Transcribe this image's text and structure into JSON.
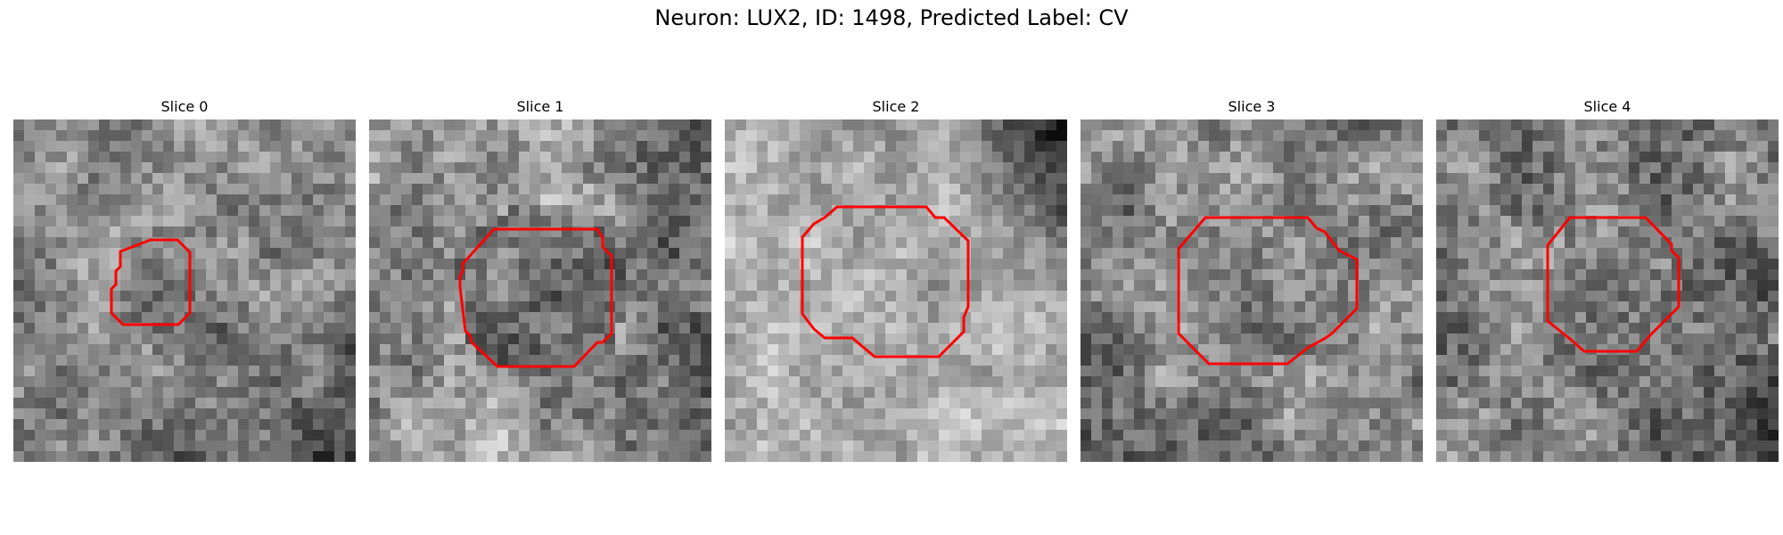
{
  "figure": {
    "title": "Neuron: LUX2, ID: 1498, Predicted Label: CV"
  },
  "colors": {
    "roi_outline": "#ff0000",
    "background": "#ffffff"
  },
  "grid_size": 32,
  "slices": [
    {
      "title": "Slice 0",
      "seed": 11,
      "base": 145,
      "contrast": 65,
      "center_tone": -25,
      "gradient": "dark-bottom-right",
      "roi_size": "small"
    },
    {
      "title": "Slice 1",
      "seed": 23,
      "base": 155,
      "contrast": 70,
      "center_tone": -45,
      "gradient": "dark-right",
      "roi_size": "medium"
    },
    {
      "title": "Slice 2",
      "seed": 37,
      "base": 175,
      "contrast": 55,
      "center_tone": 0,
      "gradient": "dark-top-right",
      "roi_size": "large"
    },
    {
      "title": "Slice 3",
      "seed": 41,
      "base": 130,
      "contrast": 70,
      "center_tone": 5,
      "gradient": "dark-left",
      "roi_size": "medium"
    },
    {
      "title": "Slice 4",
      "seed": 53,
      "base": 135,
      "contrast": 75,
      "center_tone": 10,
      "gradient": "dark-bottom-right",
      "roi_size": "small"
    }
  ]
}
